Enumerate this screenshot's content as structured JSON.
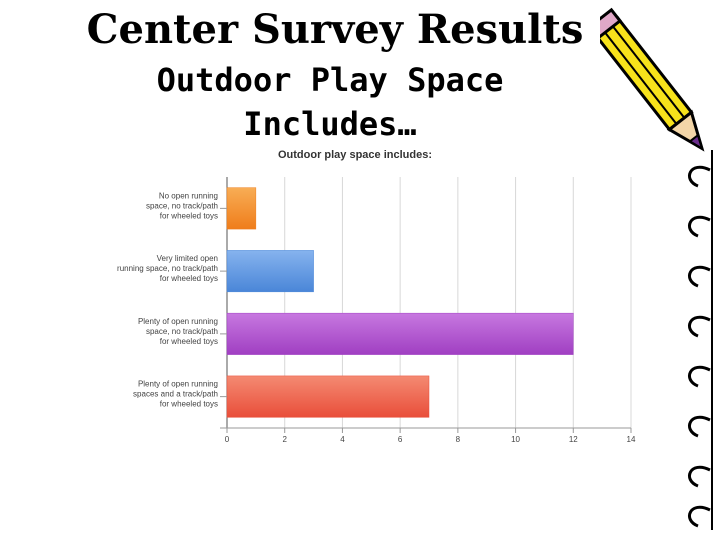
{
  "slide": {
    "title": "Center Survey Results",
    "subtitle_line1": "Outdoor Play Space",
    "subtitle_line2": "Includes…"
  },
  "decorations": {
    "pencil_icon": "pencil-icon",
    "notebook_icon": "spiral-notebook-icon"
  },
  "chart_data": {
    "type": "bar",
    "orientation": "horizontal",
    "title": "Outdoor play space includes:",
    "categories": [
      [
        "No open running",
        "space, no track/path",
        "for wheeled toys"
      ],
      [
        "Very limited open",
        "running space, no track/path",
        "for wheeled toys"
      ],
      [
        "Plenty of open running",
        "space, no track/path",
        "for wheeled toys"
      ],
      [
        "Plenty of open running",
        "spaces and a track/path",
        "for wheeled toys"
      ]
    ],
    "values": [
      1,
      3,
      12,
      7
    ],
    "bar_colors": [
      "#ef7d1b",
      "#4a86d8",
      "#a03fc2",
      "#e94e3a"
    ],
    "bar_colors_light": [
      "#f8ad55",
      "#86b3ee",
      "#c778e0",
      "#f48a72"
    ],
    "xlim": [
      0,
      14
    ],
    "xticks": [
      "0",
      "2",
      "4",
      "6",
      "8",
      "10",
      "12",
      "14"
    ],
    "grid": true,
    "legend": false
  }
}
